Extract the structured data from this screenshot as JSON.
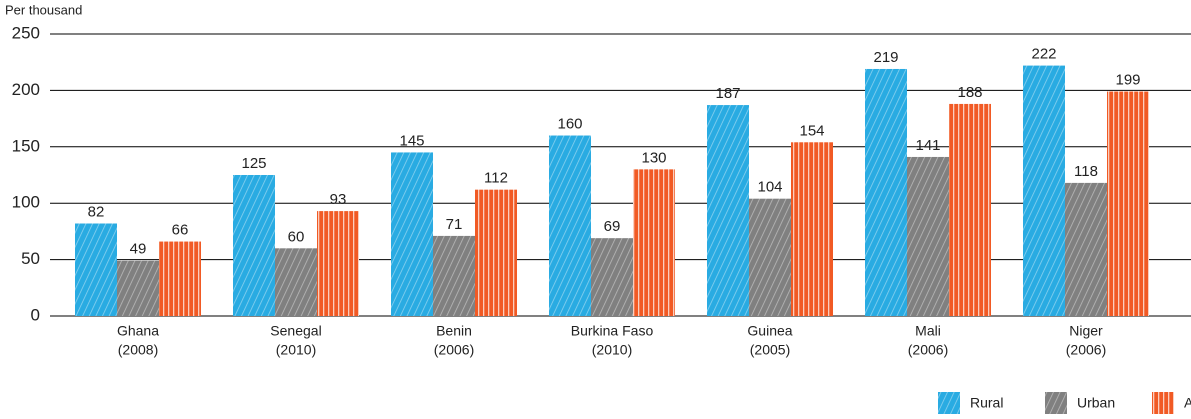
{
  "chart_data": {
    "type": "bar",
    "y_label": "Per thousand",
    "categories": [
      [
        "Ghana",
        "(2008)"
      ],
      [
        "Senegal",
        "(2010)"
      ],
      [
        "Benin",
        "(2006)"
      ],
      [
        "Burkina Faso",
        "(2010)"
      ],
      [
        "Guinea",
        "(2005)"
      ],
      [
        "Mali",
        "(2006)"
      ],
      [
        "Niger",
        "(2006)"
      ]
    ],
    "series": [
      {
        "name": "Rural",
        "color": "#29abe2",
        "values": [
          82,
          125,
          145,
          160,
          187,
          219,
          222
        ]
      },
      {
        "name": "Urban",
        "color": "#808080",
        "values": [
          49,
          60,
          71,
          69,
          104,
          141,
          118
        ]
      },
      {
        "name": "All",
        "color": "#f15a24",
        "values": [
          66,
          93,
          112,
          130,
          154,
          188,
          199
        ]
      }
    ],
    "ylim": [
      0,
      250
    ],
    "yticks": [
      0,
      50,
      100,
      150,
      200,
      250
    ],
    "grid": true,
    "legend": "bottom-right"
  }
}
